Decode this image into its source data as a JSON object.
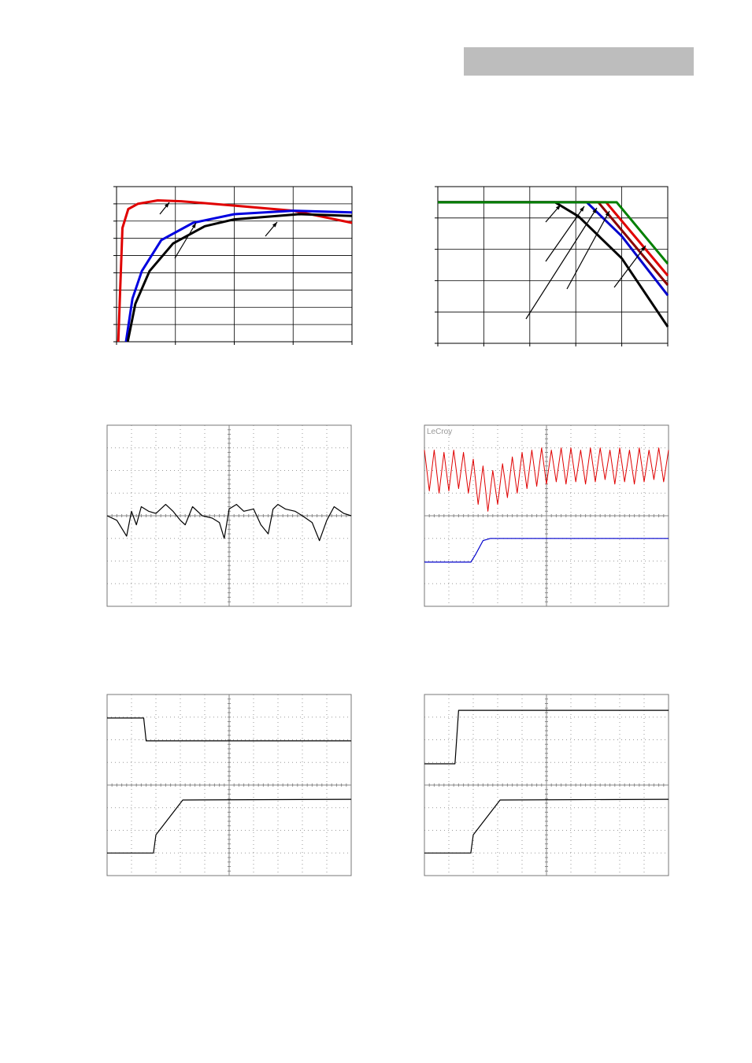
{
  "scope_brand": "LeCroy",
  "charts": [
    {
      "type": "line",
      "xlim": [
        0,
        4
      ],
      "ylim": [
        0,
        9
      ],
      "xdivisions": 4,
      "ydivisions": 9,
      "grid": "solid",
      "series": [
        {
          "color": "#e00000",
          "x": [
            0.03,
            0.1,
            0.2,
            0.36,
            0.7,
            1.1,
            2.0,
            3.0,
            4.0
          ],
          "values": [
            0,
            6.6,
            7.7,
            8.0,
            8.2,
            8.15,
            7.9,
            7.6,
            6.9
          ]
        },
        {
          "color": "#0000e0",
          "x": [
            0.16,
            0.27,
            0.43,
            0.76,
            1.3,
            2.0,
            3.0,
            4.0
          ],
          "values": [
            0,
            2.5,
            4.1,
            5.9,
            6.9,
            7.4,
            7.6,
            7.5
          ]
        },
        {
          "color": "#000000",
          "x": [
            0.19,
            0.32,
            0.56,
            0.96,
            1.5,
            2.0,
            3.1,
            4.0
          ],
          "values": [
            0,
            2.2,
            4.1,
            5.7,
            6.7,
            7.1,
            7.4,
            7.3
          ]
        }
      ]
    },
    {
      "type": "line",
      "xlim": [
        0,
        5
      ],
      "ylim": [
        0,
        5
      ],
      "xdivisions": 5,
      "ydivisions": 5,
      "grid": "solid",
      "series": [
        {
          "color": "#8b0000",
          "x": [
            0,
            3.49,
            5
          ],
          "values": [
            4.5,
            4.5,
            1.86
          ]
        },
        {
          "color": "#e00000",
          "x": [
            0,
            3.66,
            5
          ],
          "values": [
            4.5,
            4.5,
            2.16
          ]
        },
        {
          "color": "#0000cc",
          "x": [
            0,
            3.24,
            4.0,
            5
          ],
          "values": [
            4.5,
            4.5,
            3.42,
            1.53
          ]
        },
        {
          "color": "#000000",
          "x": [
            0,
            2.55,
            3.06,
            4.0,
            5
          ],
          "values": [
            4.5,
            4.5,
            4.05,
            2.71,
            0.53
          ]
        },
        {
          "color": "#008000",
          "x": [
            0,
            3.89,
            5
          ],
          "values": [
            4.5,
            4.5,
            2.54
          ]
        }
      ]
    },
    {
      "type": "scope",
      "xlim": [
        0,
        10
      ],
      "ylim": [
        0,
        8
      ],
      "xdivisions": 10,
      "ydivisions": 8,
      "grid": "dotted",
      "series": [
        {
          "color": "#000000",
          "x": [
            0,
            0.4,
            0.8,
            1.0,
            1.2,
            1.4,
            1.7,
            2.0,
            2.4,
            2.7,
            3.0,
            3.2,
            3.5,
            3.9,
            4.3,
            4.6,
            4.8,
            5.0,
            5.3,
            5.6,
            6.0,
            6.3,
            6.6,
            6.8,
            7.0,
            7.3,
            7.7,
            8.0,
            8.4,
            8.7,
            9.0,
            9.3,
            9.7,
            10
          ],
          "values": [
            4.0,
            3.8,
            3.1,
            4.2,
            3.6,
            4.4,
            4.2,
            4.1,
            4.5,
            4.2,
            3.8,
            3.6,
            4.4,
            4.0,
            3.9,
            3.7,
            3.0,
            4.3,
            4.5,
            4.2,
            4.3,
            3.6,
            3.2,
            4.3,
            4.5,
            4.3,
            4.2,
            4.0,
            3.7,
            2.9,
            3.8,
            4.4,
            4.1,
            4.0
          ]
        }
      ]
    },
    {
      "type": "scope",
      "xlim": [
        0,
        10
      ],
      "ylim": [
        0,
        8
      ],
      "xdivisions": 10,
      "ydivisions": 8,
      "grid": "dotted",
      "brand": true,
      "series": [
        {
          "color": "#e00000",
          "x": [
            0,
            0.2,
            0.4,
            0.6,
            0.8,
            1.0,
            1.2,
            1.4,
            1.6,
            1.8,
            2.0,
            2.2,
            2.4,
            2.6,
            2.8,
            3.0,
            3.2,
            3.4,
            3.6,
            3.8,
            4.0,
            4.2,
            4.4,
            4.6,
            4.8,
            5.0,
            5.2,
            5.4,
            5.6,
            5.8,
            6.0,
            6.2,
            6.4,
            6.6,
            6.8,
            7.0,
            7.2,
            7.4,
            7.6,
            7.8,
            8.0,
            8.2,
            8.4,
            8.6,
            8.8,
            9.0,
            9.2,
            9.4,
            9.6,
            9.8,
            10
          ],
          "values": [
            6.9,
            5.1,
            6.9,
            5.0,
            6.8,
            5.1,
            6.9,
            5.2,
            6.8,
            5.0,
            6.5,
            4.5,
            6.2,
            4.2,
            6.0,
            4.5,
            6.3,
            4.8,
            6.6,
            5.0,
            6.8,
            5.2,
            6.9,
            5.3,
            7.0,
            5.4,
            6.9,
            5.5,
            7.0,
            5.4,
            7.0,
            5.5,
            6.9,
            5.4,
            7.0,
            5.5,
            7.0,
            5.6,
            6.9,
            5.4,
            7.0,
            5.5,
            6.9,
            5.4,
            7.0,
            5.5,
            6.9,
            5.6,
            7.0,
            5.5,
            6.9
          ]
        },
        {
          "color": "#0000cc",
          "x": [
            0,
            1.9,
            2.1,
            2.4,
            2.7,
            10
          ],
          "values": [
            1.95,
            1.95,
            2.3,
            2.9,
            3.0,
            3.0
          ]
        }
      ]
    },
    {
      "type": "scope",
      "xlim": [
        0,
        10
      ],
      "ylim": [
        0,
        8
      ],
      "xdivisions": 10,
      "ydivisions": 8,
      "grid": "dotted",
      "series": [
        {
          "color": "#000000",
          "x": [
            0,
            1.5,
            1.6,
            10
          ],
          "values": [
            6.96,
            6.96,
            5.95,
            5.95
          ]
        },
        {
          "color": "#000000",
          "x": [
            0,
            1.9,
            2.0,
            3.1,
            10
          ],
          "values": [
            1.0,
            1.0,
            1.8,
            3.34,
            3.37
          ]
        }
      ]
    },
    {
      "type": "scope",
      "xlim": [
        0,
        10
      ],
      "ylim": [
        0,
        8
      ],
      "xdivisions": 10,
      "ydivisions": 8,
      "grid": "dotted",
      "series": [
        {
          "color": "#000000",
          "x": [
            0,
            1.25,
            1.4,
            10
          ],
          "values": [
            4.94,
            4.94,
            7.3,
            7.3
          ]
        },
        {
          "color": "#000000",
          "x": [
            0,
            1.9,
            2.0,
            3.1,
            10
          ],
          "values": [
            1.0,
            1.0,
            1.8,
            3.34,
            3.37
          ]
        }
      ]
    }
  ]
}
